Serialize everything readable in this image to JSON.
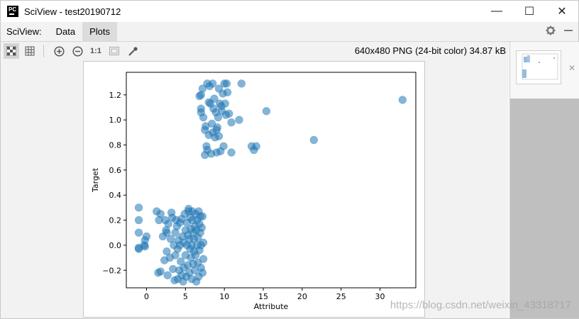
{
  "window": {
    "title": "SciView - test20190712",
    "logo_text": "PC",
    "controls": {
      "minimize": "—",
      "maximize": "☐",
      "close": "✕"
    }
  },
  "menubar": {
    "label": "SciView:",
    "tabs": [
      {
        "label": "Data",
        "active": false
      },
      {
        "label": "Plots",
        "active": true
      }
    ]
  },
  "toolbar": {
    "tools": [
      "grid-checker",
      "grid",
      "zoom-in",
      "zoom-out",
      "actual-size",
      "fit",
      "color-picker"
    ],
    "actual_size_label": "1:1",
    "image_info": "640x480 PNG (24-bit color) 34.87 kB"
  },
  "watermark": "https://blog.csdn.net/weixin_43318717",
  "chart_data": {
    "type": "scatter",
    "title": "",
    "xlabel": "Attribute",
    "ylabel": "Target",
    "xlim": [
      -2.6,
      34.6
    ],
    "ylim": [
      -0.34,
      1.38
    ],
    "xticks": [
      0,
      5,
      10,
      15,
      20,
      25,
      30
    ],
    "xtick_labels": [
      "0",
      "5",
      "10",
      "15",
      "20",
      "25",
      "30"
    ],
    "yticks": [
      -0.2,
      0.0,
      0.2,
      0.4,
      0.6,
      0.8,
      1.0,
      1.2
    ],
    "ytick_labels": [
      "−0.2",
      "0.0",
      "0.2",
      "0.4",
      "0.6",
      "0.8",
      "1.0",
      "1.2"
    ],
    "marker_color": "#1f77b4",
    "marker_alpha": 0.55,
    "points": [
      [
        -1.0,
        0.3
      ],
      [
        -1.0,
        0.2
      ],
      [
        -1.0,
        0.1
      ],
      [
        -1.0,
        -0.02
      ],
      [
        -1.0,
        -0.03
      ],
      [
        -0.3,
        0.0
      ],
      [
        -0.2,
        0.04
      ],
      [
        0.0,
        0.07
      ],
      [
        -0.2,
        -0.01
      ],
      [
        1.3,
        0.27
      ],
      [
        1.5,
        -0.22
      ],
      [
        1.6,
        0.2
      ],
      [
        1.8,
        0.25
      ],
      [
        1.8,
        -0.21
      ],
      [
        2.1,
        0.07
      ],
      [
        2.3,
        -0.12
      ],
      [
        2.4,
        0.2
      ],
      [
        2.5,
        0.12
      ],
      [
        2.6,
        -0.05
      ],
      [
        2.6,
        0.1
      ],
      [
        2.7,
        -0.24
      ],
      [
        2.8,
        0.17
      ],
      [
        3.0,
        -0.1
      ],
      [
        3.1,
        0.05
      ],
      [
        3.2,
        0.26
      ],
      [
        3.3,
        0.22
      ],
      [
        3.4,
        -0.19
      ],
      [
        3.5,
        0.0
      ],
      [
        3.6,
        -0.28
      ],
      [
        3.7,
        0.1
      ],
      [
        3.7,
        -0.08
      ],
      [
        3.8,
        0.2
      ],
      [
        3.9,
        0.15
      ],
      [
        4.0,
        -0.03
      ],
      [
        4.0,
        -0.27
      ],
      [
        4.1,
        0.04
      ],
      [
        4.2,
        -0.2
      ],
      [
        4.3,
        0.0
      ],
      [
        4.3,
        0.18
      ],
      [
        4.4,
        -0.13
      ],
      [
        4.5,
        0.21
      ],
      [
        4.5,
        -0.24
      ],
      [
        4.6,
        0.07
      ],
      [
        4.7,
        -0.29
      ],
      [
        4.8,
        -0.18
      ],
      [
        4.8,
        0.02
      ],
      [
        4.9,
        0.25
      ],
      [
        5.0,
        -0.08
      ],
      [
        5.0,
        0.12
      ],
      [
        5.1,
        -0.25
      ],
      [
        5.2,
        0.0
      ],
      [
        5.2,
        0.18
      ],
      [
        5.3,
        -0.16
      ],
      [
        5.3,
        0.08
      ],
      [
        5.4,
        0.27
      ],
      [
        5.4,
        0.29
      ],
      [
        5.5,
        0.05
      ],
      [
        5.5,
        -0.22
      ],
      [
        5.6,
        0.22
      ],
      [
        5.6,
        -0.03
      ],
      [
        5.7,
        0.13
      ],
      [
        5.7,
        -0.1
      ],
      [
        5.8,
        -0.27
      ],
      [
        5.8,
        0.0
      ],
      [
        5.9,
        0.27
      ],
      [
        5.9,
        0.2
      ],
      [
        6.0,
        0.1
      ],
      [
        6.0,
        -0.15
      ],
      [
        6.1,
        0.05
      ],
      [
        6.1,
        -0.05
      ],
      [
        6.2,
        0.15
      ],
      [
        6.2,
        -0.2
      ],
      [
        6.3,
        0.25
      ],
      [
        6.3,
        -0.08
      ],
      [
        6.4,
        0.12
      ],
      [
        6.4,
        -0.29
      ],
      [
        6.5,
        0.0
      ],
      [
        6.5,
        0.2
      ],
      [
        6.6,
        -0.14
      ],
      [
        6.6,
        0.06
      ],
      [
        6.7,
        0.27
      ],
      [
        6.7,
        -0.25
      ],
      [
        6.8,
        0.17
      ],
      [
        6.8,
        -0.04
      ],
      [
        6.9,
        0.23
      ],
      [
        6.9,
        0.1
      ],
      [
        7.0,
        -0.18
      ],
      [
        7.0,
        0.0
      ],
      [
        7.1,
        0.14
      ],
      [
        7.2,
        -0.22
      ],
      [
        7.2,
        0.23
      ],
      [
        7.3,
        0.02
      ],
      [
        7.3,
        -0.11
      ],
      [
        6.8,
        1.19
      ],
      [
        7.0,
        1.2
      ],
      [
        7.0,
        1.09
      ],
      [
        7.0,
        1.06
      ],
      [
        7.2,
        1.25
      ],
      [
        7.3,
        1.02
      ],
      [
        7.5,
        0.92
      ],
      [
        7.5,
        0.72
      ],
      [
        7.6,
        0.95
      ],
      [
        7.7,
        0.79
      ],
      [
        7.8,
        1.29
      ],
      [
        7.8,
        0.76
      ],
      [
        8.0,
        1.14
      ],
      [
        8.0,
        0.88
      ],
      [
        8.1,
        1.27
      ],
      [
        8.2,
        1.13
      ],
      [
        8.3,
        0.73
      ],
      [
        8.4,
        0.97
      ],
      [
        8.5,
        0.9
      ],
      [
        8.5,
        1.29
      ],
      [
        8.6,
        1.09
      ],
      [
        8.7,
        1.17
      ],
      [
        8.8,
        0.86
      ],
      [
        8.9,
        1.06
      ],
      [
        9.0,
        0.92
      ],
      [
        9.0,
        0.74
      ],
      [
        9.1,
        0.94
      ],
      [
        9.2,
        1.02
      ],
      [
        9.3,
        0.87
      ],
      [
        9.3,
        1.25
      ],
      [
        9.4,
        1.13
      ],
      [
        9.5,
        0.75
      ],
      [
        9.6,
        1.11
      ],
      [
        9.7,
        1.07
      ],
      [
        9.8,
        1.21
      ],
      [
        9.9,
        0.79
      ],
      [
        10.0,
        1.29
      ],
      [
        10.1,
        1.13
      ],
      [
        10.2,
        1.04
      ],
      [
        10.3,
        1.29
      ],
      [
        10.4,
        1.22
      ],
      [
        10.6,
        1.05
      ],
      [
        10.9,
        0.98
      ],
      [
        10.9,
        0.74
      ],
      [
        11.9,
        1.0
      ],
      [
        12.2,
        1.29
      ],
      [
        13.5,
        0.79
      ],
      [
        13.8,
        0.76
      ],
      [
        14.1,
        0.79
      ],
      [
        15.4,
        1.07
      ],
      [
        21.5,
        0.84
      ],
      [
        32.9,
        1.16
      ]
    ]
  }
}
